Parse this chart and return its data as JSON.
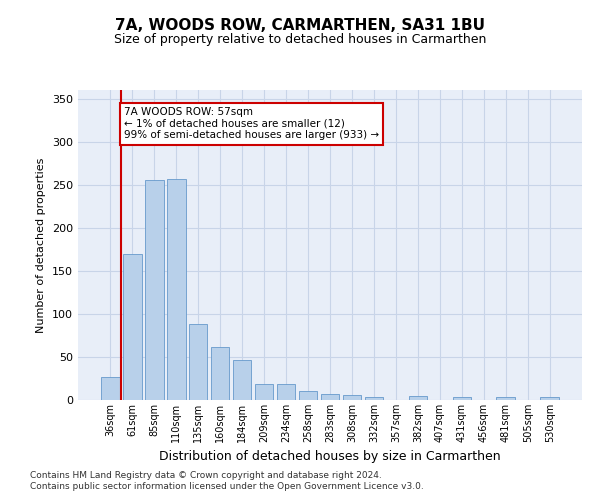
{
  "title": "7A, WOODS ROW, CARMARTHEN, SA31 1BU",
  "subtitle": "Size of property relative to detached houses in Carmarthen",
  "xlabel": "Distribution of detached houses by size in Carmarthen",
  "ylabel": "Number of detached properties",
  "footer_line1": "Contains HM Land Registry data © Crown copyright and database right 2024.",
  "footer_line2": "Contains public sector information licensed under the Open Government Licence v3.0.",
  "bar_labels": [
    "36sqm",
    "61sqm",
    "85sqm",
    "110sqm",
    "135sqm",
    "160sqm",
    "184sqm",
    "209sqm",
    "234sqm",
    "258sqm",
    "283sqm",
    "308sqm",
    "332sqm",
    "357sqm",
    "382sqm",
    "407sqm",
    "431sqm",
    "456sqm",
    "481sqm",
    "505sqm",
    "530sqm"
  ],
  "bar_values": [
    27,
    170,
    255,
    257,
    88,
    61,
    46,
    19,
    19,
    10,
    7,
    6,
    4,
    0,
    5,
    0,
    4,
    0,
    3,
    0,
    3
  ],
  "bar_color": "#b8d0ea",
  "bar_edge_color": "#6699cc",
  "grid_color": "#c8d4e8",
  "bg_color": "#e8eef8",
  "annotation_text": "7A WOODS ROW: 57sqm\n← 1% of detached houses are smaller (12)\n99% of semi-detached houses are larger (933) →",
  "annotation_box_color": "#ffffff",
  "annotation_box_edge": "#cc0000",
  "vline_color": "#cc0000",
  "ylim": [
    0,
    360
  ],
  "yticks": [
    0,
    50,
    100,
    150,
    200,
    250,
    300,
    350
  ],
  "title_fontsize": 11,
  "subtitle_fontsize": 9,
  "ylabel_fontsize": 8,
  "xlabel_fontsize": 9,
  "tick_fontsize": 7,
  "footer_fontsize": 6.5
}
